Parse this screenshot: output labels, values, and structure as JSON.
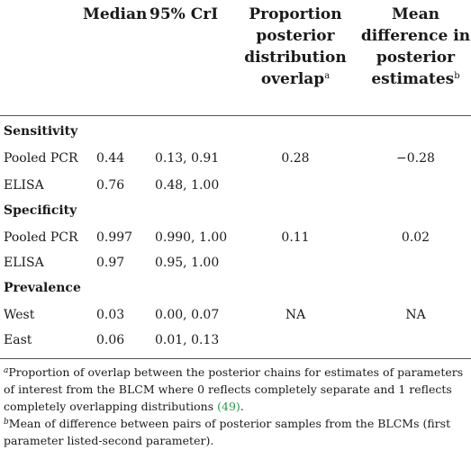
{
  "header": {
    "median": "Median",
    "cri": "95% CrI",
    "overlap": [
      "Proportion",
      "posterior",
      "distribution",
      "overlap"
    ],
    "overlap_sup": "a",
    "meandiff": [
      "Mean",
      "difference in",
      "posterior",
      "estimates"
    ],
    "meandiff_sup": "b"
  },
  "sections": [
    {
      "title": "Sensitivity",
      "rows": [
        {
          "label": "Pooled PCR",
          "median": "0.44",
          "cri": "0.13, 0.91",
          "overlap": "0.28",
          "meandiff": "−0.28"
        },
        {
          "label": "ELISA",
          "median": "0.76",
          "cri": "0.48, 1.00",
          "overlap": "",
          "meandiff": ""
        }
      ]
    },
    {
      "title": "Specificity",
      "rows": [
        {
          "label": "Pooled PCR",
          "median": "0.997",
          "cri": "0.990, 1.00",
          "overlap": "0.11",
          "meandiff": "0.02"
        },
        {
          "label": "ELISA",
          "median": "0.97",
          "cri": "0.95, 1.00",
          "overlap": "",
          "meandiff": ""
        }
      ]
    },
    {
      "title": "Prevalence",
      "rows": [
        {
          "label": "West",
          "median": "0.03",
          "cri": "0.00, 0.07",
          "overlap": "NA",
          "meandiff": "NA"
        },
        {
          "label": "East",
          "median": "0.06",
          "cri": "0.01, 0.13",
          "overlap": "",
          "meandiff": ""
        }
      ]
    }
  ],
  "footnotes": {
    "a_mark": "a",
    "a_text": "Proportion of overlap between the posterior chains for estimates of parameters of interest from the BLCM where 0 reflects completely separate and 1 reflects completely overlapping distributions",
    "a_ref": "(49)",
    "a_end": ".",
    "b_mark": "b",
    "b_text": "Mean of difference between pairs of posterior samples from the BLCMs (first parameter listed-second parameter)."
  }
}
